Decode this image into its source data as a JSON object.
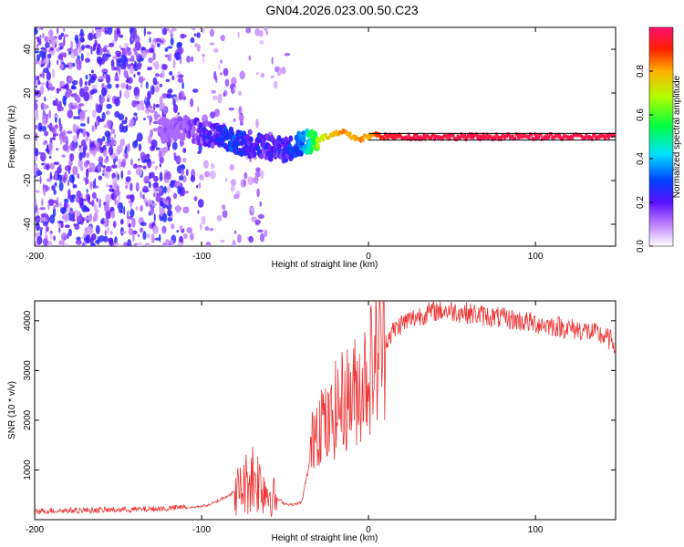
{
  "title": "GN04.2026.023.00.50.C23",
  "chart_data": [
    {
      "type": "heatmap",
      "title": "GN04.2026.023.00.50.C23",
      "xlabel": "Height of straight line (km)",
      "ylabel": "Frequency (Hz)",
      "xlim": [
        -200,
        148
      ],
      "ylim": [
        -50,
        50
      ],
      "xticks": [
        -200,
        -100,
        0,
        100
      ],
      "yticks": [
        -40,
        -20,
        0,
        20,
        40
      ],
      "colorbar": {
        "label": "Normalized spectral amplitude",
        "range": [
          0,
          1
        ],
        "ticks": [
          "0.0",
          "0.2",
          "0.4",
          "0.6",
          "0.8"
        ]
      },
      "signal_track": {
        "description_points_x": [
          -120,
          -110,
          -100,
          -90,
          -80,
          -70,
          -60,
          -50,
          -40,
          -30,
          -20,
          -15,
          -10,
          -5,
          0,
          5,
          10,
          20,
          50,
          100,
          148
        ],
        "frequency_hz": [
          3,
          4,
          2,
          0,
          -2,
          -4,
          -5,
          -6,
          -3,
          -1,
          1,
          2,
          0,
          -1,
          0,
          1,
          0,
          0,
          0,
          0,
          0
        ],
        "amplitude": [
          0.15,
          0.18,
          0.25,
          0.3,
          0.35,
          0.3,
          0.28,
          0.3,
          0.4,
          0.7,
          0.8,
          0.85,
          0.8,
          0.85,
          0.8,
          0.9,
          0.95,
          0.97,
          0.98,
          0.98,
          0.98
        ]
      }
    },
    {
      "type": "line",
      "xlabel": "Height of straight line (km)",
      "ylabel": "SNR (10 * v/v)",
      "xlim": [
        -200,
        148
      ],
      "ylim": [
        0,
        4400
      ],
      "xticks": [
        -200,
        -100,
        0,
        100
      ],
      "yticks": [
        1000,
        2000,
        3000,
        4000
      ],
      "series": [
        {
          "name": "SNR",
          "color": "#ee3333",
          "x": [
            -200,
            -180,
            -160,
            -140,
            -120,
            -110,
            -100,
            -95,
            -90,
            -85,
            -80,
            -75,
            -70,
            -65,
            -60,
            -55,
            -50,
            -45,
            -40,
            -35,
            -32,
            -30,
            -28,
            -25,
            -22,
            -20,
            -15,
            -10,
            -5,
            0,
            5,
            10,
            15,
            20,
            30,
            40,
            50,
            60,
            70,
            80,
            90,
            100,
            110,
            120,
            130,
            140,
            148
          ],
          "values": [
            150,
            160,
            170,
            180,
            200,
            230,
            270,
            300,
            380,
            480,
            550,
            650,
            900,
            750,
            550,
            420,
            320,
            300,
            350,
            1200,
            2000,
            1900,
            2100,
            1800,
            2000,
            2200,
            2400,
            2500,
            2700,
            3000,
            3300,
            3600,
            3800,
            3950,
            4100,
            4200,
            4200,
            4150,
            4100,
            4050,
            4000,
            3950,
            3900,
            3850,
            3800,
            3700,
            3550
          ]
        }
      ]
    }
  ]
}
